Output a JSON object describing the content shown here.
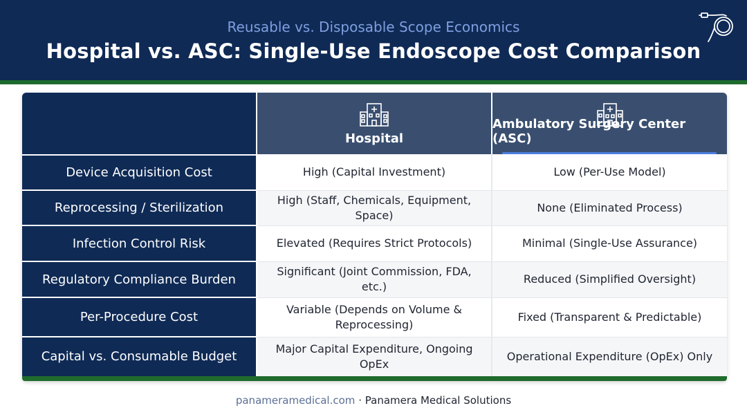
{
  "header": {
    "subtitle": "Reusable vs. Disposable Scope Economics",
    "title": "Hospital vs. ASC: Single-Use Endoscope Cost Comparison",
    "logo_icon": "endoscope-icon"
  },
  "table": {
    "columns": [
      {
        "label": "Hospital",
        "icon": "hospital-building-icon"
      },
      {
        "label": "Ambulatory Surgery Center (ASC)",
        "icon": "clinic-building-icon"
      }
    ],
    "rows": [
      {
        "label": "Device Acquisition Cost",
        "hospital": "High (Capital Investment)",
        "asc": "Low (Per-Use Model)"
      },
      {
        "label": "Reprocessing / Sterilization",
        "hospital": "High (Staff, Chemicals, Equipment, Space)",
        "asc": "None (Eliminated Process)"
      },
      {
        "label": "Infection Control Risk",
        "hospital": "Elevated (Requires Strict Protocols)",
        "asc": "Minimal (Single-Use Assurance)"
      },
      {
        "label": "Regulatory Compliance Burden",
        "hospital": "Significant (Joint Commission, FDA, etc.)",
        "asc": "Reduced (Simplified Oversight)"
      },
      {
        "label": "Per-Procedure Cost",
        "hospital": "Variable (Depends on Volume & Reprocessing)",
        "asc": "Fixed (Transparent & Predictable)"
      },
      {
        "label": "Capital vs. Consumable Budget",
        "hospital": "Major Capital Expenditure, Ongoing OpEx",
        "asc": "Operational Expenditure (OpEx) Only"
      }
    ]
  },
  "footer": {
    "domain": "panameramedical.com",
    "separator": "·",
    "company": "Panamera Medical Solutions"
  },
  "colors": {
    "navy": "#0f2a55",
    "header_column": "#3a4f70",
    "accent_green": "#1f6b2d",
    "accent_blue": "#4d7fe0"
  }
}
